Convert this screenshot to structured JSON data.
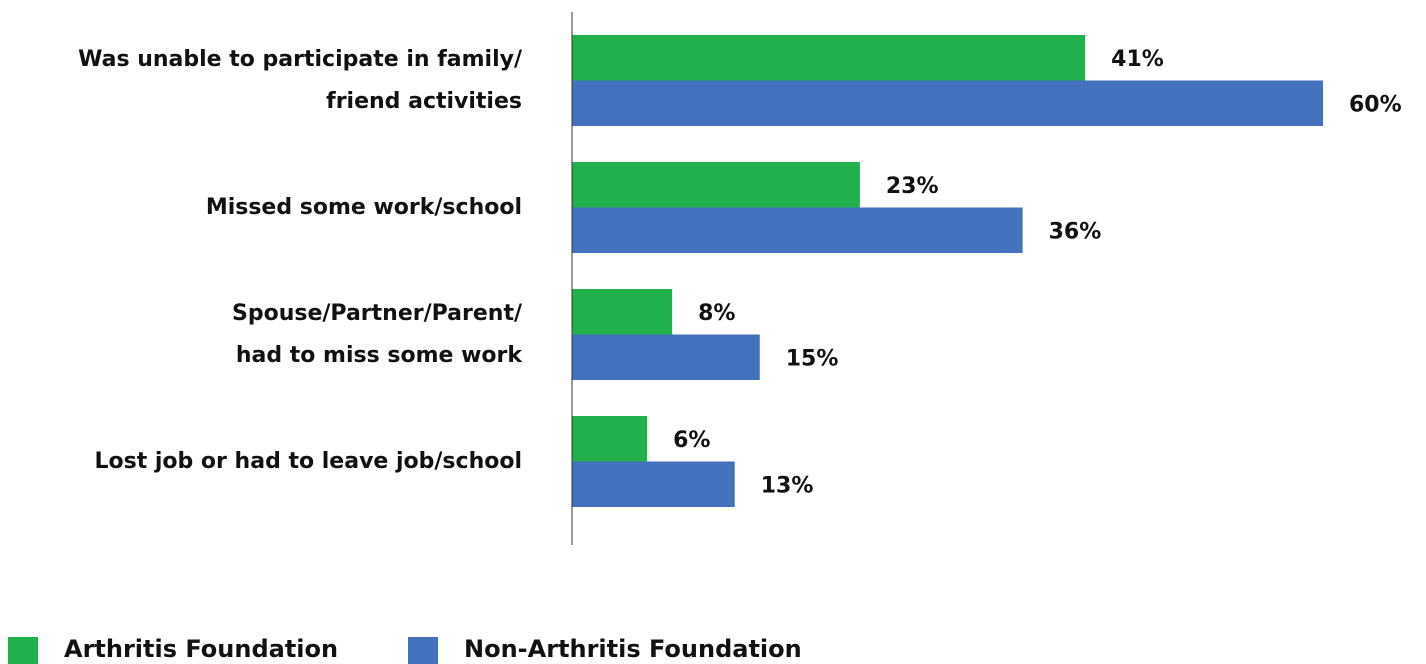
{
  "chart_data": {
    "type": "barh",
    "categories": [
      "Was unable to participate in family/\nfriend activities",
      "Missed some work/school",
      "Spouse/Partner/Parent/\nhad to miss some work",
      "Lost job or had to leave job/school"
    ],
    "series": [
      {
        "name": "Arthritis Foundation",
        "color": "#21b04b",
        "values": [
          41,
          23,
          8,
          6
        ],
        "value_labels": [
          "41%",
          "23%",
          "8%",
          "6%"
        ]
      },
      {
        "name": "Non-Arthritis Foundation",
        "color": "#4471bd",
        "values": [
          60,
          36,
          15,
          13
        ],
        "value_labels": [
          "60%",
          "36%",
          "15%",
          "13%"
        ]
      }
    ],
    "xlim": [
      0,
      60
    ],
    "legend": "bottom"
  }
}
